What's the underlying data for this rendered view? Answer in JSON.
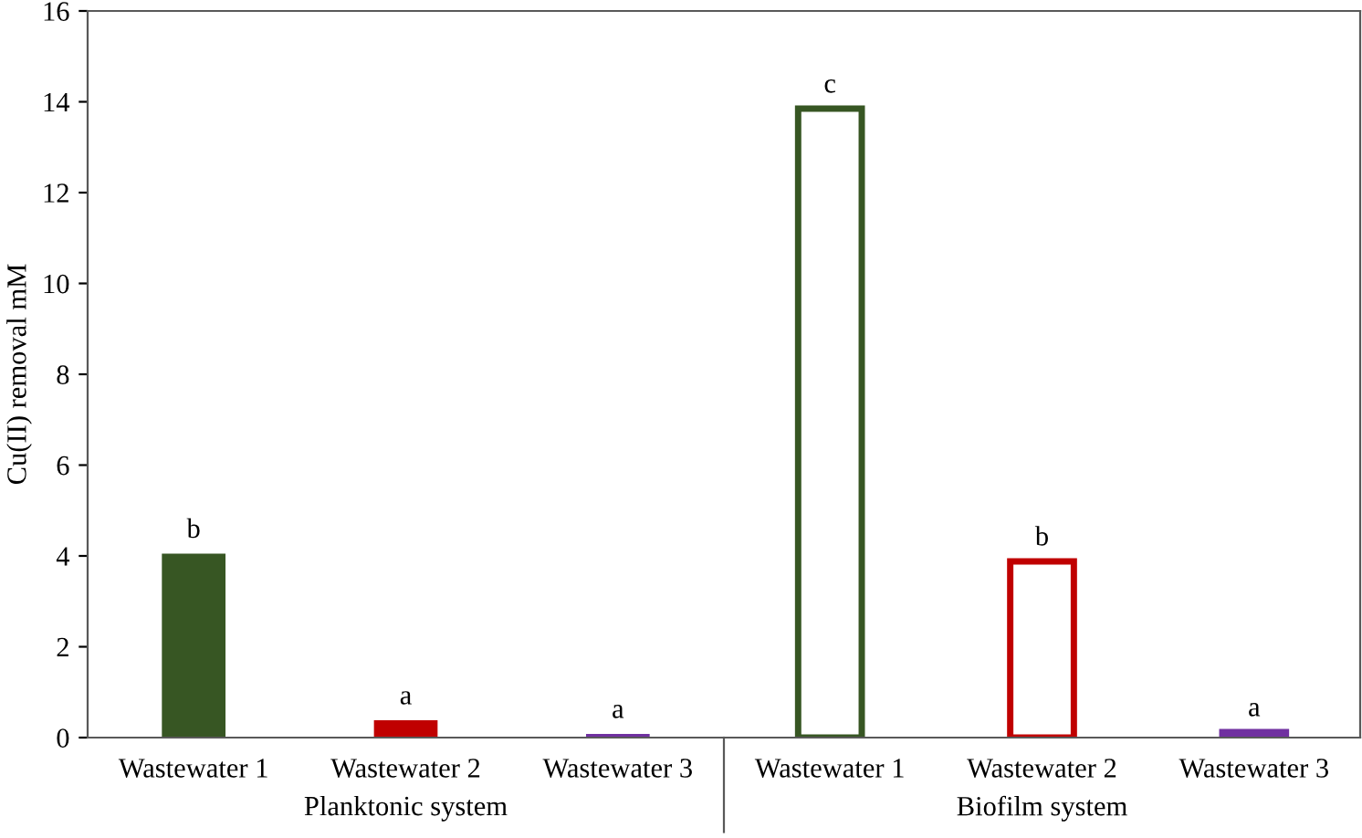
{
  "chart_data": {
    "type": "bar",
    "ylabel": "Cu(II) removal mM",
    "categories": [
      "Wastewater 1",
      "Wastewater 2",
      "Wastewater 3",
      "Wastewater 1",
      "Wastewater 2",
      "Wastewater 3"
    ],
    "series": [
      {
        "values": [
          4.05,
          0.38,
          0.08,
          null,
          null,
          null
        ],
        "colors": [
          "#375623",
          "#c00000",
          "#7030a0",
          null,
          null,
          null
        ],
        "value_labels": [
          "b",
          "a",
          "a",
          null,
          null,
          null
        ]
      },
      {
        "values": [
          null,
          null,
          null,
          13.85,
          3.88,
          0.12
        ],
        "colors": [
          null,
          null,
          null,
          "#375623",
          "#c00000",
          "#7030a0"
        ],
        "value_labels": [
          null,
          null,
          null,
          "c",
          "b",
          "a"
        ]
      }
    ],
    "annotations": [
      "Planktonic system",
      "Biofilm system"
    ],
    "ylim": [
      0,
      16
    ],
    "yticks": [
      0,
      2,
      4,
      6,
      8,
      10,
      12,
      14,
      16
    ],
    "grid": false
  }
}
